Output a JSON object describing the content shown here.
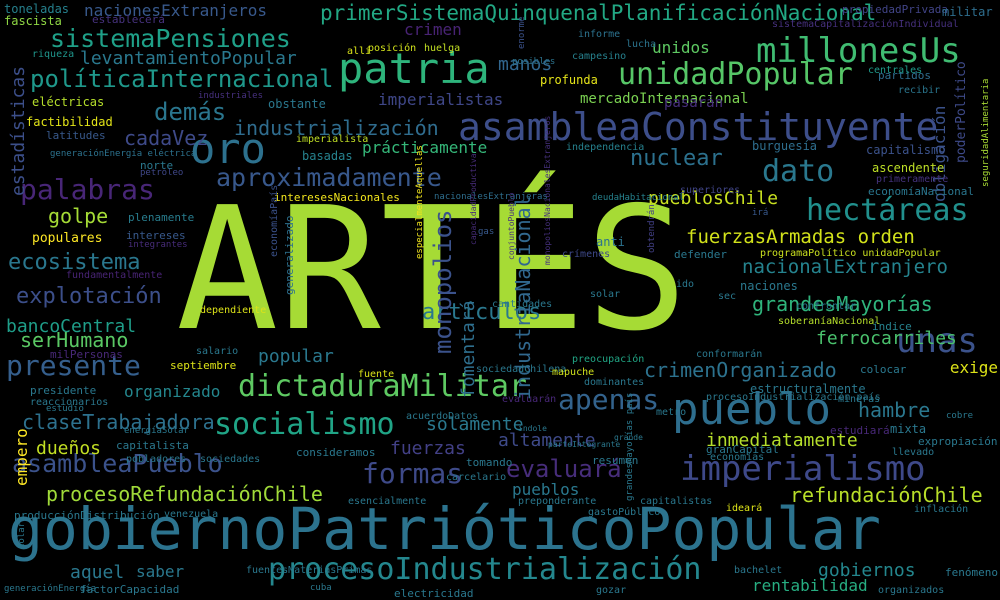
{
  "title": "",
  "background_color": "#000000",
  "words": [
    {
      "text": "ARTÉS",
      "color": "#a6db35"
    },
    {
      "text": "gobiernoPatrióticoPopular",
      "color": "#2c738e"
    },
    {
      "text": "patria",
      "color": "#2eb47c"
    },
    {
      "text": "asambleaConstituyente",
      "color": "#3d4e8a"
    },
    {
      "text": "pueblo",
      "color": "#2e6e8e"
    },
    {
      "text": "oro",
      "color": "#2d718e"
    },
    {
      "text": "unidadPopular",
      "color": "#56c667"
    },
    {
      "text": "millonesUs",
      "color": "#40bc72"
    },
    {
      "text": "dictaduraMilitar",
      "color": "#5ec962"
    },
    {
      "text": "imperialismo",
      "color": "#3e4989"
    },
    {
      "text": "procesoIndustrialización",
      "color": "#24878e"
    },
    {
      "text": "primerSistemaQuinquenalPlanificaciónNacional",
      "color": "#22a884"
    },
    {
      "text": "sistemaPensiones",
      "color": "#1fa088"
    },
    {
      "text": "dato",
      "color": "#2a788e"
    },
    {
      "text": "hectáreas",
      "color": "#21908d"
    },
    {
      "text": "socialismo",
      "color": "#20a486"
    },
    {
      "text": "aproximadamente",
      "color": "#38588c"
    },
    {
      "text": "palabras",
      "color": "#482677"
    },
    {
      "text": "presente",
      "color": "#355f8d"
    },
    {
      "text": "unas",
      "color": "#3b528b"
    },
    {
      "text": "formas",
      "color": "#3e4a89"
    },
    {
      "text": "apenas",
      "color": "#33638d"
    },
    {
      "text": "asambleaPueblo",
      "color": "#3b528b"
    },
    {
      "text": "políticaInternacional",
      "color": "#1f988b"
    },
    {
      "text": "demás",
      "color": "#2a768e"
    },
    {
      "text": "nuclear",
      "color": "#2c718e"
    },
    {
      "text": "fuerzasArmadas orden",
      "color": "#d2e21b"
    },
    {
      "text": "grandesMayorías",
      "color": "#2fb47c"
    },
    {
      "text": "nacionalExtranjero",
      "color": "#25838e"
    },
    {
      "text": "industrialización",
      "color": "#2f6c8e"
    },
    {
      "text": "evaluará",
      "color": "#472d7b"
    },
    {
      "text": "refundaciónChile",
      "color": "#b8de29"
    },
    {
      "text": "procesoRefundaciónChile",
      "color": "#a0da39"
    },
    {
      "text": "crimenOrganizado",
      "color": "#2c728e"
    },
    {
      "text": "claseTrabajadora",
      "color": "#2d718e"
    },
    {
      "text": "explotación",
      "color": "#3c4f8a"
    },
    {
      "text": "ecosistema",
      "color": "#2a778e"
    },
    {
      "text": "bancoCentral",
      "color": "#1f9e89"
    },
    {
      "text": "artículos",
      "color": "#2a788e"
    },
    {
      "text": "hambre",
      "color": "#2a778e"
    },
    {
      "text": "pueblosChile",
      "color": "#c8e020"
    },
    {
      "text": "levantamientoPopular",
      "color": "#2a788e"
    },
    {
      "text": "manos",
      "color": "#31668e"
    },
    {
      "text": "cadaVez",
      "color": "#3e4a89"
    },
    {
      "text": "golpe",
      "color": "#a5db36"
    },
    {
      "text": "serHumano",
      "color": "#5ac864"
    },
    {
      "text": "popular",
      "color": "#2a788e"
    },
    {
      "text": "ferrocarriles",
      "color": "#4ac16d"
    },
    {
      "text": "solamente",
      "color": "#2a788e"
    },
    {
      "text": "altamente",
      "color": "#3e4a89"
    },
    {
      "text": "dueños",
      "color": "#c2df23"
    },
    {
      "text": "fuerzas",
      "color": "#424086"
    },
    {
      "text": "pueblos",
      "color": "#2a788e"
    },
    {
      "text": "inmediatamente",
      "color": "#b5de2b"
    },
    {
      "text": "gobiernos",
      "color": "#24878e"
    },
    {
      "text": "rentabilidad",
      "color": "#27ad81"
    },
    {
      "text": "empero",
      "color": "#fde725"
    },
    {
      "text": "aquel",
      "color": "#2a788e"
    },
    {
      "text": "saber",
      "color": "#2a788e"
    },
    {
      "text": "monopolios",
      "color": "#3b528b"
    },
    {
      "text": "industriaNacional",
      "color": "#31688e"
    },
    {
      "text": "fomentará",
      "color": "#2e6f8e"
    },
    {
      "text": "estadísticas",
      "color": "#3c4f8a"
    },
    {
      "text": "crimen",
      "color": "#482374"
    },
    {
      "text": "imperialistas",
      "color": "#3f4788"
    },
    {
      "text": "unidos",
      "color": "#5ec962"
    },
    {
      "text": "mercadoInternacional",
      "color": "#7ad151"
    },
    {
      "text": "prácticamente",
      "color": "#35b779"
    },
    {
      "text": "exige",
      "color": "#dde318"
    },
    {
      "text": "organizado",
      "color": "#24878e"
    },
    {
      "text": "nacionesExtranjeros",
      "color": "#38598c"
    },
    {
      "text": "toneladas",
      "color": "#26818e"
    },
    {
      "text": "fascista",
      "color": "#8fd744"
    },
    {
      "text": "establecerá",
      "color": "#46327e"
    },
    {
      "text": "propiedadPrivada",
      "color": "#414487"
    },
    {
      "text": "sistemaCapitalizaciónIndividual",
      "color": "#46307e"
    },
    {
      "text": "militar",
      "color": "#2e6e8e"
    },
    {
      "text": "obligación",
      "color": "#3b528b"
    },
    {
      "text": "poderPolítico",
      "color": "#3e4a89"
    },
    {
      "text": "seguridadAlimentaria",
      "color": "#a8db34"
    },
    {
      "text": "riqueza",
      "color": "#1f958b"
    },
    {
      "text": "allí",
      "color": "#d8e219"
    },
    {
      "text": "posición",
      "color": "#d2e21b"
    },
    {
      "text": "huelga",
      "color": "#c2df23"
    },
    {
      "text": "informe",
      "color": "#2c728e"
    },
    {
      "text": "lucha",
      "color": "#2b748e"
    },
    {
      "text": "campesino",
      "color": "#26818e"
    },
    {
      "text": "profunda",
      "color": "#e5e419"
    },
    {
      "text": "posibles",
      "color": "#2c738e"
    },
    {
      "text": "enorme",
      "color": "#3b528b"
    },
    {
      "text": "partidos",
      "color": "#2f6c8e"
    },
    {
      "text": "recibir",
      "color": "#2a768e"
    },
    {
      "text": "eléctricas",
      "color": "#b5de2b"
    },
    {
      "text": "obstante",
      "color": "#2a788e"
    },
    {
      "text": "industriales",
      "color": "#46307e"
    },
    {
      "text": "factibilidad",
      "color": "#e2e418"
    },
    {
      "text": "latitudes",
      "color": "#38598c"
    },
    {
      "text": "imperialista",
      "color": "#c0df25"
    },
    {
      "text": "basadas",
      "color": "#26828e"
    },
    {
      "text": "generaciónEnergía eléctrica",
      "color": "#2c728e"
    },
    {
      "text": "petróleo",
      "color": "#3f4788"
    },
    {
      "text": "norte",
      "color": "#2a788e"
    },
    {
      "text": "independencia",
      "color": "#26818e"
    },
    {
      "text": "burguesía",
      "color": "#2e6e8e"
    },
    {
      "text": "capitalismo",
      "color": "#3b528b"
    },
    {
      "text": "pasarán",
      "color": "#472f7d"
    },
    {
      "text": "centrales",
      "color": "#1f9a8a"
    },
    {
      "text": "ascendente",
      "color": "#bddf26"
    },
    {
      "text": "primeramente",
      "color": "#46337f"
    },
    {
      "text": "economíaNacional",
      "color": "#2a768e"
    },
    {
      "text": "superiores",
      "color": "#404588"
    },
    {
      "text": "interesesNacionales",
      "color": "#f1e51d"
    },
    {
      "text": "nacionalesExtranjeras",
      "color": "#2e6e8e"
    },
    {
      "text": "deudaHabitacional",
      "color": "#26828e"
    },
    {
      "text": "irá",
      "color": "#38588c"
    },
    {
      "text": "plenamente",
      "color": "#287d8e"
    },
    {
      "text": "intereses",
      "color": "#38598c"
    },
    {
      "text": "integrantes",
      "color": "#472c7a"
    },
    {
      "text": "populares",
      "color": "#fde725"
    },
    {
      "text": "fundamentalmente",
      "color": "#482475"
    },
    {
      "text": "economíaPaís",
      "color": "#3b528b"
    },
    {
      "text": "especialmenteAquellas",
      "color": "#f1e51d"
    },
    {
      "text": "conjuntoPueblo",
      "color": "#46307e"
    },
    {
      "text": "gas",
      "color": "#38598c"
    },
    {
      "text": "crímenes",
      "color": "#3e4989"
    },
    {
      "text": "anti",
      "color": "#2c728e"
    },
    {
      "text": "obtendrán",
      "color": "#424086"
    },
    {
      "text": "defender",
      "color": "#2a788e"
    },
    {
      "text": "programaPolítico unidadPopular",
      "color": "#cae11f"
    },
    {
      "text": "generalizado",
      "color": "#2d708e"
    },
    {
      "text": "cantidades",
      "color": "#2a788e"
    },
    {
      "text": "capacidadProductiva",
      "color": "#472c7a"
    },
    {
      "text": "monopoliosNacionalesExtranjeros",
      "color": "#46307e"
    },
    {
      "text": "ido",
      "color": "#2a788e"
    },
    {
      "text": "solar",
      "color": "#2a788e"
    },
    {
      "text": "naciones",
      "color": "#2a788e"
    },
    {
      "text": "sec",
      "color": "#2a788e"
    },
    {
      "text": "confrontar",
      "color": "#2a788e"
    },
    {
      "text": "soberaníaNacional",
      "color": "#b5de2b"
    },
    {
      "text": "índice",
      "color": "#26828e"
    },
    {
      "text": "dependiente",
      "color": "#dde318"
    },
    {
      "text": "milPersonas",
      "color": "#482878"
    },
    {
      "text": "septiembre",
      "color": "#dde318"
    },
    {
      "text": "salario",
      "color": "#2a788e"
    },
    {
      "text": "preocupación",
      "color": "#21a685"
    },
    {
      "text": "conformarán",
      "color": "#2a788e"
    },
    {
      "text": "sociedadChilena",
      "color": "#2a788e"
    },
    {
      "text": "mapuche",
      "color": "#d0e11c"
    },
    {
      "text": "colocar",
      "color": "#2a788e"
    },
    {
      "text": "fuente",
      "color": "#dde318"
    },
    {
      "text": "presidente",
      "color": "#2a788e"
    },
    {
      "text": "reaccionarios",
      "color": "#2a788e"
    },
    {
      "text": "estudio",
      "color": "#2a788e"
    },
    {
      "text": "evaluarán",
      "color": "#482878"
    },
    {
      "text": "dominantes",
      "color": "#2a788e"
    },
    {
      "text": "procesoIndustrialización país",
      "color": "#2a788e"
    },
    {
      "text": "estructuralmente",
      "color": "#2a788e"
    },
    {
      "text": "mineras",
      "color": "#2a788e"
    },
    {
      "text": "cobre",
      "color": "#2a788e"
    },
    {
      "text": "acuerdoDatos",
      "color": "#2a788e"
    },
    {
      "text": "índole",
      "color": "#2a788e"
    },
    {
      "text": "metro",
      "color": "#2a788e"
    },
    {
      "text": "mixta",
      "color": "#2a788e"
    },
    {
      "text": "estudiará",
      "color": "#482878"
    },
    {
      "text": "energíaSolar",
      "color": "#2a788e"
    },
    {
      "text": "capitalista",
      "color": "#2a788e"
    },
    {
      "text": "parteIntegrante",
      "color": "#2a788e"
    },
    {
      "text": "grande",
      "color": "#2a788e"
    },
    {
      "text": "granCapital",
      "color": "#2a788e"
    },
    {
      "text": "expropiación",
      "color": "#2a788e"
    },
    {
      "text": "llevado",
      "color": "#2a788e"
    },
    {
      "text": "pobladores",
      "color": "#2a788e"
    },
    {
      "text": "sociedades",
      "color": "#2a788e"
    },
    {
      "text": "consideramos",
      "color": "#2a788e"
    },
    {
      "text": "tomando",
      "color": "#2a788e"
    },
    {
      "text": "resumen",
      "color": "#2a788e"
    },
    {
      "text": "economías",
      "color": "#2a788e"
    },
    {
      "text": "carcelario",
      "color": "#2a788e"
    },
    {
      "text": "dolar",
      "color": "#2a788e"
    },
    {
      "text": "grandesMayorías país",
      "color": "#2a788e"
    },
    {
      "text": "esencialmente",
      "color": "#2a788e"
    },
    {
      "text": "preponderante",
      "color": "#2a788e"
    },
    {
      "text": "capitalistas",
      "color": "#2a788e"
    },
    {
      "text": "ideará",
      "color": "#dde318"
    },
    {
      "text": "producciónDistribución",
      "color": "#2a788e"
    },
    {
      "text": "venezuela",
      "color": "#2a788e"
    },
    {
      "text": "gastoPúblico",
      "color": "#2a788e"
    },
    {
      "text": "inflación",
      "color": "#2a788e"
    },
    {
      "text": "fuentesMateriasPrimas",
      "color": "#2a788e"
    },
    {
      "text": "electricidad",
      "color": "#2a788e"
    },
    {
      "text": "bachelet",
      "color": "#2a788e"
    },
    {
      "text": "fenómeno",
      "color": "#2a788e"
    },
    {
      "text": "generaciónEnergía",
      "color": "#2a788e"
    },
    {
      "text": "factorCapacidad",
      "color": "#2a788e"
    },
    {
      "text": "cuba",
      "color": "#2a788e"
    },
    {
      "text": "gozar",
      "color": "#2a788e"
    },
    {
      "text": "organizados",
      "color": "#2a788e"
    }
  ]
}
